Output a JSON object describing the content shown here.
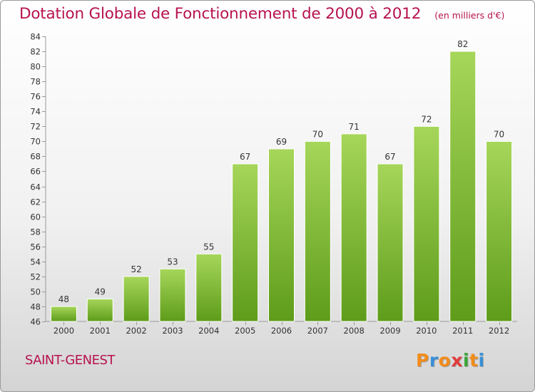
{
  "header": {
    "title": "Dotation Globale de Fonctionnement de 2000 à 2012",
    "unit": "(en milliers d'€)"
  },
  "footer": {
    "commune": "SAINT-GENEST",
    "logo_text": "Proxiti",
    "logo_colors": [
      "#f28c1a",
      "#3a8fd8",
      "#f28c1a",
      "#e23b3b",
      "#3aa535",
      "#f28c1a",
      "#3a8fd8"
    ]
  },
  "colors": {
    "bar_light": "#a6d65a",
    "bar_dark": "#5e9c1a",
    "accent": "#b7124f"
  },
  "chart_data": {
    "type": "bar",
    "title": "Dotation Globale de Fonctionnement de 2000 à 2012",
    "subtitle": "(en milliers d'€)",
    "categories": [
      "2000",
      "2001",
      "2002",
      "2003",
      "2004",
      "2005",
      "2006",
      "2007",
      "2008",
      "2009",
      "2010",
      "2011",
      "2012"
    ],
    "values": [
      48,
      49,
      52,
      53,
      55,
      67,
      69,
      70,
      71,
      67,
      72,
      82,
      70
    ],
    "ylim": [
      46,
      84
    ],
    "yticks": [
      46,
      48,
      50,
      52,
      54,
      56,
      58,
      60,
      62,
      64,
      66,
      68,
      70,
      72,
      74,
      76,
      78,
      80,
      82,
      84
    ],
    "grid": false,
    "data_labels": true
  }
}
